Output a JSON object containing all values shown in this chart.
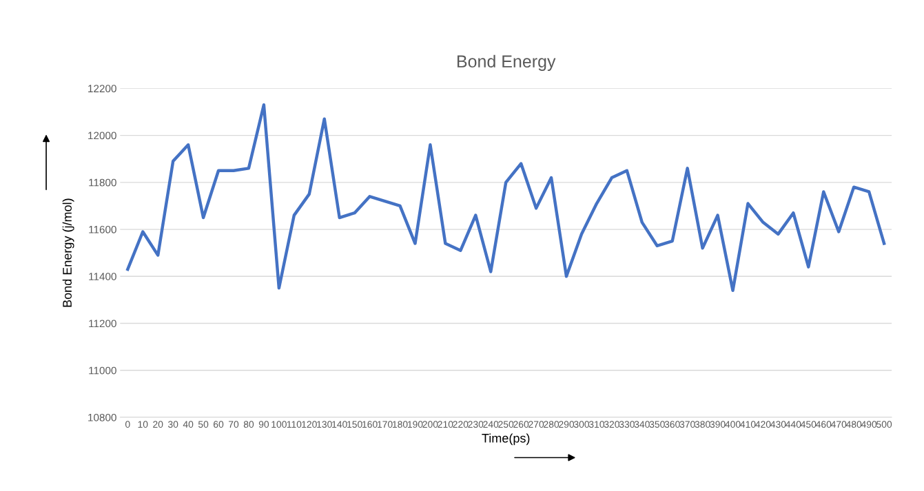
{
  "chart_data": {
    "type": "line",
    "title": "Bond Energy",
    "xlabel": "Time(ps)",
    "ylabel": "Bond Energy (j/mol)",
    "categories": [
      "0",
      "10",
      "20",
      "30",
      "40",
      "50",
      "60",
      "70",
      "80",
      "90",
      "100",
      "110",
      "120",
      "130",
      "140",
      "150",
      "160",
      "170",
      "180",
      "190",
      "200",
      "210",
      "220",
      "230",
      "240",
      "250",
      "260",
      "270",
      "280",
      "290",
      "300",
      "310",
      "320",
      "330",
      "340",
      "350",
      "360",
      "370",
      "380",
      "390",
      "400",
      "410",
      "420",
      "430",
      "440",
      "450",
      "460",
      "470",
      "480",
      "490",
      "500"
    ],
    "series": [
      {
        "color": "#4472c4",
        "values": [
          11430,
          11590,
          11490,
          11890,
          11960,
          11650,
          11850,
          11850,
          11860,
          12130,
          11350,
          11660,
          11750,
          12070,
          11650,
          11670,
          11740,
          11720,
          11700,
          11540,
          11960,
          11540,
          11510,
          11660,
          11420,
          11800,
          11880,
          11690,
          11820,
          11400,
          11580,
          11710,
          11820,
          11850,
          11630,
          11530,
          11550,
          11860,
          11520,
          11660,
          11340,
          11710,
          11630,
          11580,
          11670,
          11440,
          11760,
          11590,
          11780,
          11760,
          11540
        ]
      }
    ],
    "ylim": [
      10800,
      12200
    ],
    "yticks": [
      10800,
      11000,
      11200,
      11400,
      11600,
      11800,
      12000,
      12200
    ],
    "grid": "y",
    "legend": false,
    "marker": "none",
    "line_style": "solid"
  }
}
